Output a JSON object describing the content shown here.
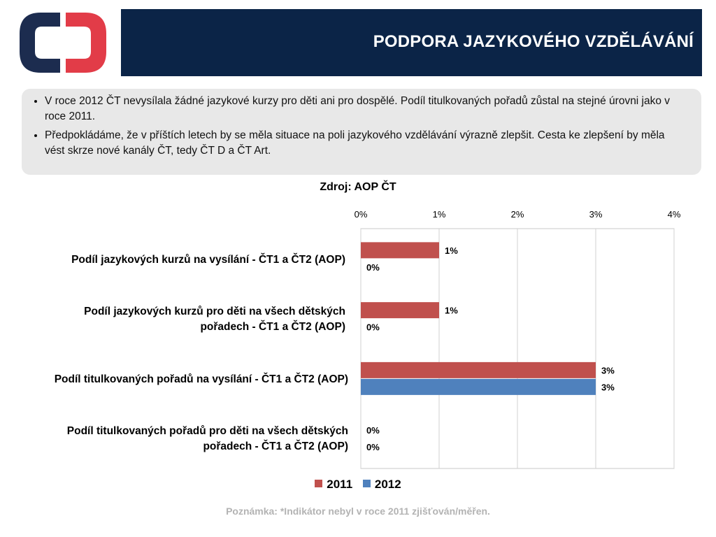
{
  "header": {
    "title": "PODPORA JAZYKOVÉHO VZDĚLÁVÁNÍ"
  },
  "colors": {
    "header_bg": "#0b2447",
    "logo_blue": "#1c2c4f",
    "logo_red": "#e23c48",
    "series_2011": "#c0504d",
    "series_2012": "#4f81bd"
  },
  "notes": [
    "V roce 2012 ČT nevysílala žádné jazykové kurzy pro děti ani pro dospělé. Podíl titulkovaných pořadů zůstal na stejné úrovni jako v roce 2011.",
    "Předpokládáme, že v příštích letech by se měla situace na poli jazykového vzdělávání výrazně zlepšit. Cesta ke zlepšení by měla vést skrze nové kanály ČT, tedy ČT D a ČT Art."
  ],
  "source": "Zdroj: AOP ČT",
  "footnote": "Poznámka: *Indikátor nebyl v roce 2011 zjišťován/měřen.",
  "chart_data": {
    "type": "bar",
    "orientation": "horizontal",
    "x_ticks": [
      "0%",
      "1%",
      "2%",
      "3%",
      "4%"
    ],
    "xlim": [
      0,
      4
    ],
    "grid": true,
    "legend": "bottom",
    "categories": [
      "Podíl jazykových kurzů na vysílání - ČT1 a ČT2 (AOP)",
      "Podíl jazykových kurzů pro děti na všech dětských pořadech - ČT1 a ČT2 (AOP)",
      "Podíl titulkovaných pořadů na vysílání - ČT1 a ČT2 (AOP)",
      "Podíl titulkovaných pořadů pro děti na všech dětských pořadech - ČT1 a ČT2 (AOP)"
    ],
    "series": [
      {
        "name": "2011",
        "color": "#c0504d",
        "values": [
          1,
          1,
          3,
          0
        ],
        "labels": [
          "1%",
          "1%",
          "3%",
          "0%"
        ]
      },
      {
        "name": "2012",
        "color": "#4f81bd",
        "values": [
          0,
          0,
          3,
          0
        ],
        "labels": [
          "0%",
          "0%",
          "3%",
          "0%"
        ]
      }
    ]
  }
}
